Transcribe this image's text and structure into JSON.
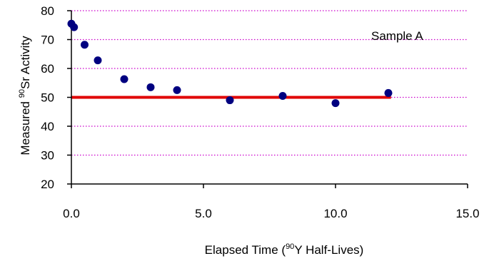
{
  "chart_data": {
    "type": "scatter",
    "title": "",
    "xlabel": {
      "pre": "Elapsed Time (",
      "sup": "90",
      "post": "Y Half-Lives)"
    },
    "ylabel": {
      "pre": "Measured ",
      "sup": "90",
      "post": "Sr Activity"
    },
    "xlim": [
      0,
      15
    ],
    "ylim": [
      20,
      80
    ],
    "xticks": [
      "0.0",
      "5.0",
      "10.0",
      "15.0"
    ],
    "yticks": [
      "20",
      "30",
      "40",
      "50",
      "60",
      "70",
      "80"
    ],
    "grid": "horizontal dotted",
    "grid_color": "#cc00cc",
    "annotation": "Sample A",
    "series": [
      {
        "marker_color": "#000080",
        "points": [
          [
            0.0,
            75.5
          ],
          [
            0.1,
            74.3
          ],
          [
            0.5,
            68.2
          ],
          [
            1.0,
            62.8
          ],
          [
            2.0,
            56.3
          ],
          [
            3.0,
            53.5
          ],
          [
            4.0,
            52.5
          ],
          [
            6.0,
            49.0
          ],
          [
            8.0,
            50.5
          ],
          [
            10.0,
            48.0
          ],
          [
            12.0,
            51.5
          ]
        ]
      }
    ],
    "reference_line": {
      "y": 50,
      "x_range": [
        0,
        12.1
      ],
      "color": "#e00000"
    }
  }
}
